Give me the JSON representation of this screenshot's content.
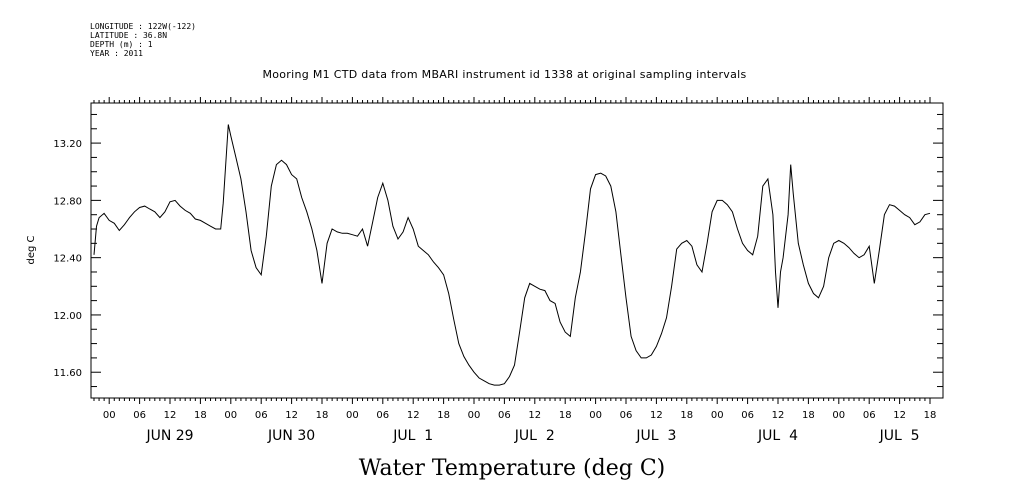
{
  "meta": {
    "longitude": "LONGITUDE : 122W(-122)",
    "latitude": "LATITUDE : 36.8N",
    "depth": "DEPTH (m) : 1",
    "year": "YEAR : 2011"
  },
  "chart_data": {
    "type": "line",
    "title": "Mooring M1 CTD data from MBARI instrument id 1338 at original sampling intervals",
    "xlabel": "Water Temperature (deg C)",
    "ylabel": "deg C",
    "ylim": [
      11.42,
      13.48
    ],
    "y_ticks": [
      "11.60",
      "12.00",
      "12.40",
      "12.80",
      "13.20"
    ],
    "x_unit": "hours since 2011-06-28 21:00",
    "xlim": [
      0,
      165
    ],
    "hour_tick_labels": [
      "00",
      "06",
      "12",
      "18",
      "00",
      "06",
      "12",
      "18",
      "00",
      "06",
      "12",
      "18",
      "00",
      "06",
      "12",
      "18",
      "00",
      "06",
      "12",
      "18",
      "00",
      "06",
      "12",
      "18",
      "00",
      "06",
      "12",
      "18"
    ],
    "day_labels": [
      "JUN 29",
      "JUN 30",
      "JUL  1",
      "JUL  2",
      "JUL  3",
      "JUL  4",
      "JUL  5"
    ],
    "grid": false,
    "series": [
      {
        "points": [
          [
            0,
            12.42
          ],
          [
            0.5,
            12.62
          ],
          [
            1,
            12.68
          ],
          [
            2,
            12.71
          ],
          [
            3,
            12.66
          ],
          [
            4,
            12.64
          ],
          [
            5,
            12.59
          ],
          [
            6,
            12.63
          ],
          [
            7,
            12.68
          ],
          [
            8,
            12.72
          ],
          [
            9,
            12.75
          ],
          [
            10,
            12.76
          ],
          [
            11,
            12.74
          ],
          [
            12,
            12.72
          ],
          [
            13,
            12.68
          ],
          [
            14,
            12.72
          ],
          [
            15,
            12.79
          ],
          [
            16,
            12.8
          ],
          [
            17,
            12.76
          ],
          [
            18,
            12.73
          ],
          [
            19,
            12.71
          ],
          [
            20,
            12.67
          ],
          [
            21,
            12.66
          ],
          [
            22,
            12.64
          ],
          [
            23,
            12.62
          ],
          [
            24,
            12.6
          ],
          [
            25,
            12.6
          ],
          [
            25.5,
            12.78
          ],
          [
            26,
            13.05
          ],
          [
            26.5,
            13.33
          ],
          [
            27,
            13.25
          ],
          [
            28,
            13.1
          ],
          [
            29,
            12.95
          ],
          [
            30,
            12.72
          ],
          [
            31,
            12.45
          ],
          [
            32,
            12.33
          ],
          [
            33,
            12.28
          ],
          [
            34,
            12.55
          ],
          [
            35,
            12.9
          ],
          [
            36,
            13.05
          ],
          [
            37,
            13.08
          ],
          [
            38,
            13.05
          ],
          [
            39,
            12.98
          ],
          [
            40,
            12.95
          ],
          [
            41,
            12.82
          ],
          [
            42,
            12.72
          ],
          [
            43,
            12.6
          ],
          [
            44,
            12.45
          ],
          [
            45,
            12.22
          ],
          [
            46,
            12.5
          ],
          [
            47,
            12.6
          ],
          [
            48,
            12.58
          ],
          [
            49,
            12.57
          ],
          [
            50,
            12.57
          ],
          [
            51,
            12.56
          ],
          [
            52,
            12.55
          ],
          [
            53,
            12.6
          ],
          [
            54,
            12.48
          ],
          [
            55,
            12.65
          ],
          [
            56,
            12.82
          ],
          [
            57,
            12.92
          ],
          [
            58,
            12.8
          ],
          [
            59,
            12.62
          ],
          [
            60,
            12.53
          ],
          [
            61,
            12.58
          ],
          [
            62,
            12.68
          ],
          [
            63,
            12.6
          ],
          [
            64,
            12.48
          ],
          [
            65,
            12.45
          ],
          [
            66,
            12.42
          ],
          [
            67,
            12.37
          ],
          [
            68,
            12.33
          ],
          [
            69,
            12.28
          ],
          [
            70,
            12.15
          ],
          [
            71,
            11.97
          ],
          [
            72,
            11.8
          ],
          [
            73,
            11.71
          ],
          [
            74,
            11.65
          ],
          [
            75,
            11.6
          ],
          [
            76,
            11.56
          ],
          [
            77,
            11.54
          ],
          [
            78,
            11.52
          ],
          [
            79,
            11.51
          ],
          [
            80,
            11.51
          ],
          [
            81,
            11.52
          ],
          [
            82,
            11.57
          ],
          [
            83,
            11.65
          ],
          [
            84,
            11.88
          ],
          [
            85,
            12.12
          ],
          [
            86,
            12.22
          ],
          [
            87,
            12.2
          ],
          [
            88,
            12.18
          ],
          [
            89,
            12.17
          ],
          [
            90,
            12.1
          ],
          [
            91,
            12.08
          ],
          [
            92,
            11.95
          ],
          [
            93,
            11.88
          ],
          [
            94,
            11.85
          ],
          [
            95,
            12.12
          ],
          [
            96,
            12.3
          ],
          [
            97,
            12.58
          ],
          [
            98,
            12.88
          ],
          [
            99,
            12.98
          ],
          [
            100,
            12.99
          ],
          [
            101,
            12.97
          ],
          [
            102,
            12.9
          ],
          [
            103,
            12.72
          ],
          [
            104,
            12.42
          ],
          [
            105,
            12.12
          ],
          [
            106,
            11.85
          ],
          [
            107,
            11.75
          ],
          [
            108,
            11.7
          ],
          [
            109,
            11.7
          ],
          [
            110,
            11.72
          ],
          [
            111,
            11.78
          ],
          [
            112,
            11.87
          ],
          [
            113,
            11.98
          ],
          [
            114,
            12.2
          ],
          [
            115,
            12.46
          ],
          [
            116,
            12.5
          ],
          [
            117,
            12.52
          ],
          [
            118,
            12.48
          ],
          [
            119,
            12.35
          ],
          [
            120,
            12.3
          ],
          [
            121,
            12.5
          ],
          [
            122,
            12.72
          ],
          [
            123,
            12.8
          ],
          [
            124,
            12.8
          ],
          [
            125,
            12.77
          ],
          [
            126,
            12.72
          ],
          [
            127,
            12.6
          ],
          [
            128,
            12.5
          ],
          [
            129,
            12.45
          ],
          [
            130,
            12.42
          ],
          [
            131,
            12.55
          ],
          [
            132,
            12.9
          ],
          [
            133,
            12.95
          ],
          [
            134,
            12.7
          ],
          [
            134.5,
            12.3
          ],
          [
            135,
            12.05
          ],
          [
            135.5,
            12.3
          ],
          [
            136,
            12.4
          ],
          [
            137,
            12.7
          ],
          [
            137.5,
            13.05
          ],
          [
            138,
            12.85
          ],
          [
            139,
            12.5
          ],
          [
            140,
            12.35
          ],
          [
            141,
            12.22
          ],
          [
            142,
            12.15
          ],
          [
            143,
            12.12
          ],
          [
            144,
            12.2
          ],
          [
            145,
            12.4
          ],
          [
            146,
            12.5
          ],
          [
            147,
            12.52
          ],
          [
            148,
            12.5
          ],
          [
            149,
            12.47
          ],
          [
            150,
            12.43
          ],
          [
            151,
            12.4
          ],
          [
            152,
            12.42
          ],
          [
            153,
            12.48
          ],
          [
            154,
            12.22
          ],
          [
            155,
            12.45
          ],
          [
            156,
            12.7
          ],
          [
            157,
            12.77
          ],
          [
            158,
            12.76
          ],
          [
            159,
            12.73
          ],
          [
            160,
            12.7
          ],
          [
            161,
            12.68
          ],
          [
            162,
            12.63
          ],
          [
            163,
            12.65
          ],
          [
            164,
            12.7
          ],
          [
            165,
            12.71
          ]
        ]
      }
    ]
  }
}
